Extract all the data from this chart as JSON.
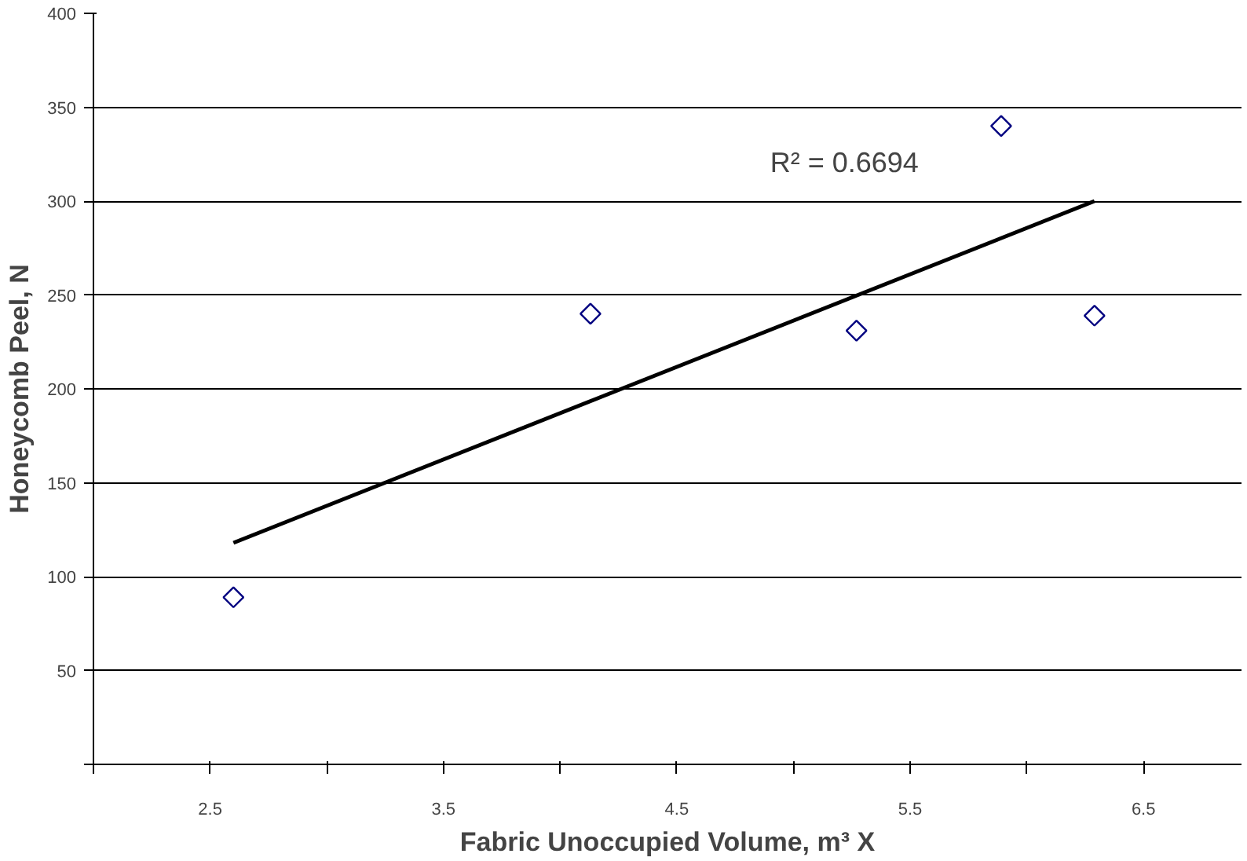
{
  "chart_data": {
    "type": "scatter",
    "xlabel": "Fabric Unoccupied Volume, m³ X",
    "ylabel": "Honeycomb Peel, N",
    "annotations": [
      "R² = 0.6694"
    ],
    "series": [
      {
        "color": "#000080",
        "marker": "diamond",
        "x": [
          2.6,
          4.13,
          5.27,
          5.89,
          6.29
        ],
        "values": [
          89,
          240,
          231,
          340,
          239
        ]
      },
      {
        "type": "line",
        "color": "#000000",
        "line_style": "solid",
        "x": [
          2.6,
          6.29
        ],
        "values": [
          118,
          300
        ]
      }
    ],
    "xlim": [
      2,
      6.92
    ],
    "xticks": [
      {
        "value": 2,
        "label": null
      },
      2.5,
      {
        "value": 3,
        "label": null
      },
      3.5,
      {
        "value": 4,
        "label": null
      },
      4.5,
      {
        "value": 5,
        "label": null
      },
      5.5,
      {
        "value": 6,
        "label": null
      },
      6.5
    ],
    "ylim": [
      0,
      400
    ],
    "yticks": [
      {
        "value": 0,
        "label": null
      },
      50,
      100,
      150,
      200,
      250,
      300,
      350,
      400
    ],
    "grid": "y"
  }
}
